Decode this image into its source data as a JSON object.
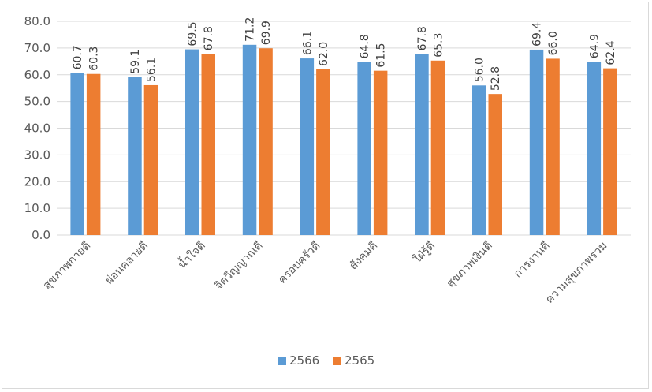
{
  "chart_data": {
    "type": "bar",
    "title": "",
    "xlabel": "",
    "ylabel": "",
    "categories": [
      "สุขภาพกายดี",
      "ผ่อนคลายดี",
      "น้ำใจดี",
      "จิตวิญญาณดี",
      "ครอบครัวดี",
      "สังคมดี",
      "ใฝ่รู้ดี",
      "สุขภาพเงินดี",
      "การงานดี",
      "ความสุขภาพรวม"
    ],
    "series": [
      {
        "name": "2566",
        "color": "#5b9bd5",
        "values": [
          60.7,
          59.1,
          69.5,
          71.2,
          66.1,
          64.8,
          67.8,
          56.0,
          69.4,
          64.9
        ]
      },
      {
        "name": "2565",
        "color": "#ed7d31",
        "values": [
          60.3,
          56.1,
          67.8,
          69.9,
          62.0,
          61.5,
          65.3,
          52.8,
          66.0,
          62.4
        ]
      }
    ],
    "ylim": [
      0,
      80
    ],
    "yticks": [
      "0.0",
      "10.0",
      "20.0",
      "30.0",
      "40.0",
      "50.0",
      "60.0",
      "70.0",
      "80.0"
    ],
    "grid": true,
    "gridColor": "#d9d9d9",
    "legend": "bottom"
  }
}
